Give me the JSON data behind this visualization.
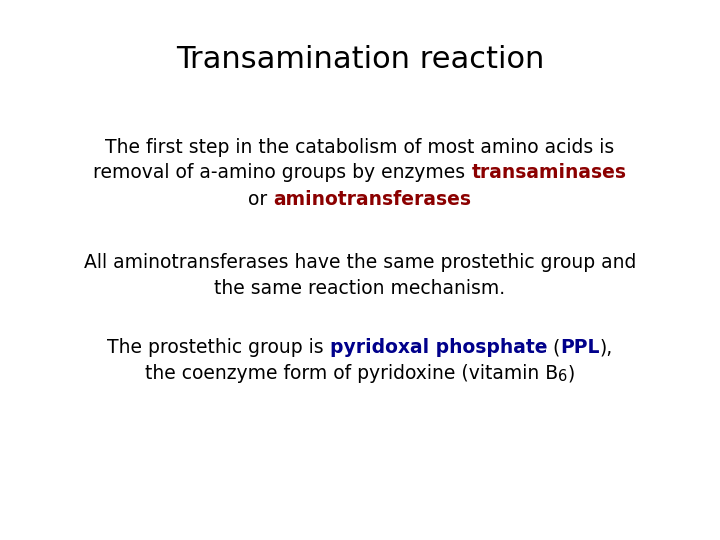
{
  "title": "Transamination reaction",
  "background_color": "#ffffff",
  "title_fontsize": 22,
  "title_color": "#000000",
  "body_fontsize": 13.5,
  "body_color": "#000000",
  "red_color": "#8b0000",
  "blue_color": "#00008b",
  "p1_line1": "The first step in the catabolism of most amino acids is",
  "p1_line2_b1": "removal of a-amino groups by enzymes ",
  "p1_line2_red": "transaminases",
  "p1_line3_b1": "or ",
  "p1_line3_red": "aminotransferases",
  "p2_line1": "All aminotransferases have the same prostethic group and",
  "p2_line2": "the same reaction mechanism.",
  "p3_line1_b1": "The prostethic group is ",
  "p3_line1_blue": "pyridoxal phosphate",
  "p3_line1_b2": " (",
  "p3_line1_blue2": "PPL",
  "p3_line1_b3": "),",
  "p3_line2_b1": "the coenzyme form of pyridoxine (vitamin B",
  "p3_line2_sub": "6",
  "p3_line2_b2": ")"
}
